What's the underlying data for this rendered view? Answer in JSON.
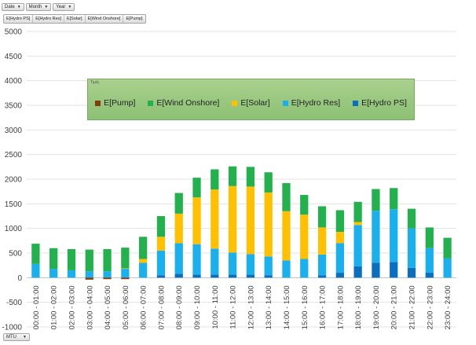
{
  "filters": [
    {
      "label": "Date"
    },
    {
      "label": "Month"
    },
    {
      "label": "Year"
    }
  ],
  "series_buttons": [
    "E[Hydro PS]",
    "E[Hydro Res]",
    "E[Solar]",
    "E[Wind Onshore]",
    "E[Pump]"
  ],
  "axis_field": {
    "label": "MTU"
  },
  "legend": {
    "title": "Τιμές",
    "items": [
      {
        "name": "E[Pump]",
        "color": "#843c0c"
      },
      {
        "name": "E[Wind Onshore]",
        "color": "#22b14c"
      },
      {
        "name": "E[Solar]",
        "color": "#ffc000"
      },
      {
        "name": "E[Hydro Res]",
        "color": "#1ab0ee"
      },
      {
        "name": "E[Hydro PS]",
        "color": "#0b6fc0"
      }
    ]
  },
  "chart_data": {
    "type": "bar",
    "stacked": true,
    "title": "",
    "xlabel": "",
    "ylabel": "",
    "ylim": [
      -1000,
      5000
    ],
    "yticks": [
      -1000,
      -500,
      0,
      500,
      1000,
      1500,
      2000,
      2500,
      3000,
      3500,
      4000,
      4500,
      5000
    ],
    "grid": true,
    "legend_position": "inside-top-center",
    "categories": [
      "00:00 - 01:00",
      "01:00 - 02:00",
      "02:00 - 03:00",
      "03:00 - 04:00",
      "04:00 - 05:00",
      "05:00 - 06:00",
      "06:00 - 07:00",
      "07:00 - 08:00",
      "08:00 - 09:00",
      "09:00 - 10:00",
      "10:00 - 11:00",
      "11:00 - 12:00",
      "12:00 - 13:00",
      "13:00 - 14:00",
      "14:00 - 15:00",
      "15:00 - 16:00",
      "16:00 - 17:00",
      "17:00 - 18:00",
      "18:00 - 19:00",
      "19:00 - 20:00",
      "20:00 - 21:00",
      "21:00 - 22:00",
      "22:00 - 23:00",
      "23:00 - 24:00"
    ],
    "series": [
      {
        "name": "E[Hydro PS]",
        "color": "#0b6fc0",
        "values": [
          0,
          0,
          0,
          0,
          0,
          0,
          0,
          50,
          80,
          60,
          60,
          60,
          60,
          50,
          0,
          0,
          50,
          100,
          230,
          300,
          320,
          200,
          100,
          0
        ]
      },
      {
        "name": "E[Hydro Res]",
        "color": "#1ab0ee",
        "values": [
          280,
          180,
          150,
          130,
          130,
          180,
          300,
          500,
          620,
          620,
          530,
          450,
          420,
          380,
          350,
          380,
          420,
          600,
          840,
          1060,
          1070,
          800,
          500,
          390
        ]
      },
      {
        "name": "E[Solar]",
        "color": "#ffc000",
        "values": [
          0,
          0,
          0,
          0,
          0,
          10,
          80,
          280,
          600,
          950,
          1200,
          1350,
          1370,
          1300,
          1000,
          900,
          550,
          230,
          60,
          0,
          0,
          0,
          0,
          0
        ]
      },
      {
        "name": "E[Wind Onshore]",
        "color": "#22b14c",
        "values": [
          410,
          420,
          430,
          440,
          450,
          420,
          450,
          420,
          420,
          400,
          410,
          400,
          400,
          410,
          570,
          400,
          430,
          440,
          410,
          440,
          430,
          400,
          420,
          420
        ]
      },
      {
        "name": "E[Pump]",
        "color": "#843c0c",
        "values": [
          0,
          0,
          0,
          -40,
          -30,
          -30,
          0,
          0,
          0,
          0,
          0,
          0,
          0,
          0,
          0,
          0,
          0,
          0,
          0,
          0,
          0,
          0,
          0,
          0
        ]
      }
    ]
  }
}
